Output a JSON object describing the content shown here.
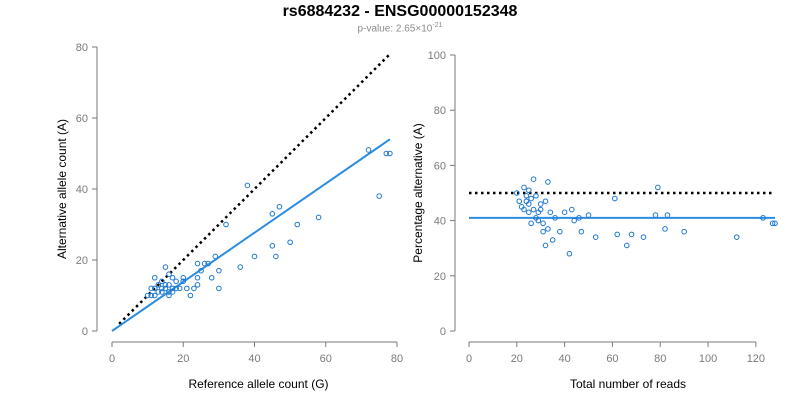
{
  "title": "rs6884232 - ENSG00000152348",
  "subtitle": {
    "prefix": "p-value: 2.65×10",
    "exponent": "-21"
  },
  "colors": {
    "points": "#1f78d1",
    "fit": "#2b8ce3",
    "reference": "#000000",
    "axis": "#7a7a7a",
    "tick_text": "#7a7a7a",
    "label_text": "#000000"
  },
  "chart_data": [
    {
      "type": "scatter",
      "title": "",
      "xlabel": "Reference allele count (G)",
      "ylabel": "Alternative allele count (A)",
      "xlim": [
        0,
        80
      ],
      "ylim": [
        0,
        80
      ],
      "xticks": [
        0,
        20,
        40,
        60,
        80
      ],
      "yticks": [
        0,
        20,
        40,
        60,
        80
      ],
      "grid": false,
      "points": [
        [
          10,
          10
        ],
        [
          11,
          10
        ],
        [
          11,
          12
        ],
        [
          12,
          10
        ],
        [
          12,
          12
        ],
        [
          12,
          15
        ],
        [
          13,
          11
        ],
        [
          13,
          13
        ],
        [
          14,
          12
        ],
        [
          14,
          11
        ],
        [
          14,
          14
        ],
        [
          15,
          12
        ],
        [
          15,
          13
        ],
        [
          15,
          18
        ],
        [
          16,
          10
        ],
        [
          16,
          11
        ],
        [
          16,
          13
        ],
        [
          16,
          16
        ],
        [
          17,
          11
        ],
        [
          17,
          12
        ],
        [
          17,
          15
        ],
        [
          18,
          12
        ],
        [
          18,
          14
        ],
        [
          19,
          12
        ],
        [
          20,
          14
        ],
        [
          20,
          15
        ],
        [
          21,
          12
        ],
        [
          22,
          10
        ],
        [
          23,
          12
        ],
        [
          24,
          13
        ],
        [
          24,
          15
        ],
        [
          24,
          19
        ],
        [
          25,
          17
        ],
        [
          26,
          19
        ],
        [
          27,
          19
        ],
        [
          28,
          15
        ],
        [
          29,
          21
        ],
        [
          30,
          12
        ],
        [
          30,
          17
        ],
        [
          32,
          30
        ],
        [
          36,
          18
        ],
        [
          38,
          41
        ],
        [
          40,
          21
        ],
        [
          45,
          24
        ],
        [
          45,
          33
        ],
        [
          46,
          21
        ],
        [
          47,
          35
        ],
        [
          50,
          25
        ],
        [
          52,
          30
        ],
        [
          58,
          32
        ],
        [
          72,
          51
        ],
        [
          75,
          38
        ],
        [
          77,
          50
        ],
        [
          78,
          50
        ]
      ],
      "fit_line": {
        "x": [
          0,
          78
        ],
        "y": [
          0,
          54
        ]
      },
      "reference_line": {
        "x": [
          2,
          78
        ],
        "y": [
          2,
          78
        ],
        "style": "dotted"
      }
    },
    {
      "type": "scatter",
      "title": "",
      "xlabel": "Total number of reads",
      "ylabel": "Percentage alternative (A)",
      "xlim": [
        0,
        128
      ],
      "ylim": [
        0,
        100
      ],
      "xticks": [
        0,
        20,
        40,
        60,
        80,
        100,
        120
      ],
      "yticks": [
        0,
        20,
        40,
        60,
        80,
        100
      ],
      "grid": false,
      "points": [
        [
          20,
          50
        ],
        [
          21,
          47
        ],
        [
          22,
          45
        ],
        [
          23,
          52
        ],
        [
          23,
          44
        ],
        [
          24,
          47
        ],
        [
          24,
          49
        ],
        [
          25,
          51
        ],
        [
          25,
          43
        ],
        [
          25,
          46
        ],
        [
          26,
          39
        ],
        [
          26,
          48
        ],
        [
          27,
          44
        ],
        [
          27,
          55
        ],
        [
          28,
          41
        ],
        [
          28,
          49
        ],
        [
          29,
          43
        ],
        [
          29,
          40
        ],
        [
          30,
          44
        ],
        [
          30,
          46
        ],
        [
          31,
          39
        ],
        [
          31,
          36
        ],
        [
          32,
          31
        ],
        [
          32,
          47
        ],
        [
          33,
          54
        ],
        [
          33,
          37
        ],
        [
          34,
          43
        ],
        [
          35,
          33
        ],
        [
          36,
          41
        ],
        [
          38,
          36
        ],
        [
          40,
          43
        ],
        [
          42,
          28
        ],
        [
          43,
          44
        ],
        [
          44,
          40
        ],
        [
          46,
          41
        ],
        [
          47,
          36
        ],
        [
          50,
          42
        ],
        [
          53,
          34
        ],
        [
          61,
          48
        ],
        [
          62,
          35
        ],
        [
          66,
          31
        ],
        [
          68,
          35
        ],
        [
          73,
          34
        ],
        [
          78,
          42
        ],
        [
          79,
          52
        ],
        [
          82,
          37
        ],
        [
          83,
          42
        ],
        [
          90,
          36
        ],
        [
          112,
          34
        ],
        [
          123,
          41
        ],
        [
          127,
          39
        ],
        [
          128,
          39
        ]
      ],
      "fit_line": {
        "x": [
          0,
          128
        ],
        "y": [
          41,
          41
        ]
      },
      "reference_line": {
        "x": [
          0,
          128
        ],
        "y": [
          50,
          50
        ],
        "style": "dotted"
      }
    }
  ]
}
